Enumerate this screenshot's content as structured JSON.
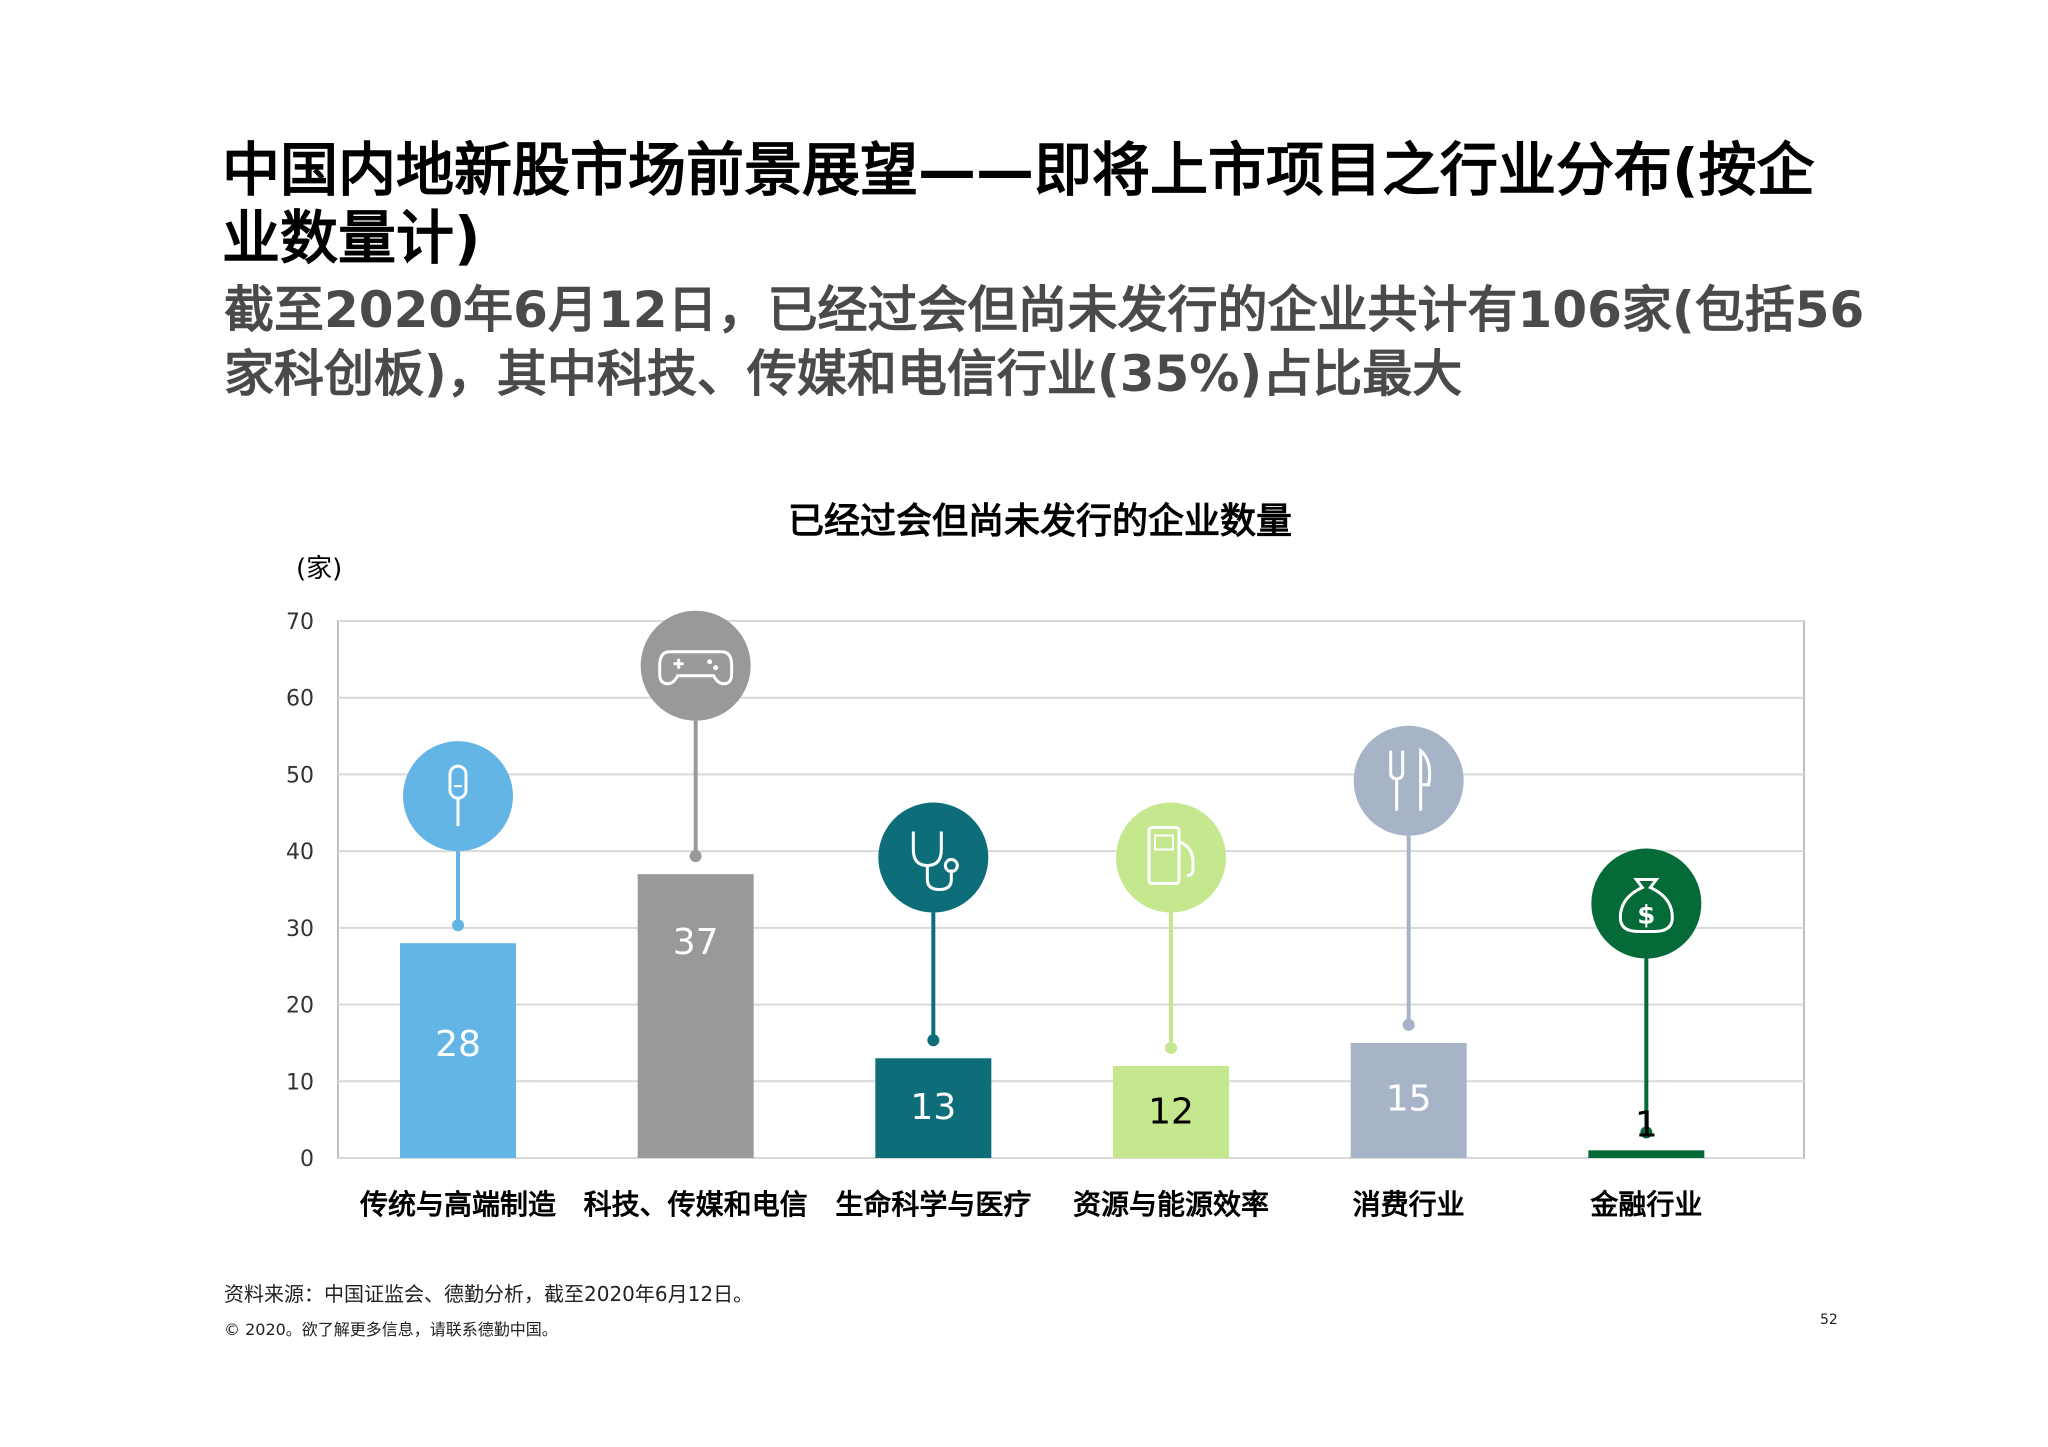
{
  "title": "中国内地新股市场前景展望——即将上市项目之行业分布(按企业数量计)",
  "subtitle": "截至2020年6月12日，已经过会但尚未发行的企业共计有106家(包括56家科创板)，其中科技、传媒和电信行业(35%)占比最大",
  "chart_data": {
    "type": "bar",
    "title": "已经过会但尚未发行的企业数量",
    "ylabel": "(家)",
    "xlabel": "",
    "ylim": [
      0,
      70
    ],
    "yticks": [
      0,
      10,
      20,
      30,
      40,
      50,
      60,
      70
    ],
    "grid": true,
    "categories": [
      "传统与高端制造",
      "科技、传媒和电信",
      "生命科学与医疗",
      "资源与能源效率",
      "消费行业",
      "金融行业"
    ],
    "values": [
      28,
      37,
      13,
      12,
      15,
      1
    ],
    "colors": [
      "#62b5e5",
      "#97999b",
      "#0d6e7a",
      "#c5e88f",
      "#a7b4c8",
      "#046a38"
    ],
    "icons": [
      "screwdriver-icon",
      "gamepad-icon",
      "stethoscope-icon",
      "fuel-pump-icon",
      "fork-knife-icon",
      "money-bag-icon"
    ],
    "pin_tops": [
      40,
      57,
      32,
      32,
      42,
      26
    ]
  },
  "footer": {
    "source": "资料来源：中国证监会、德勤分析，截至2020年6月12日。",
    "copyright": "© 2020。欲了解更多信息，请联系德勤中国。",
    "page": "52"
  }
}
